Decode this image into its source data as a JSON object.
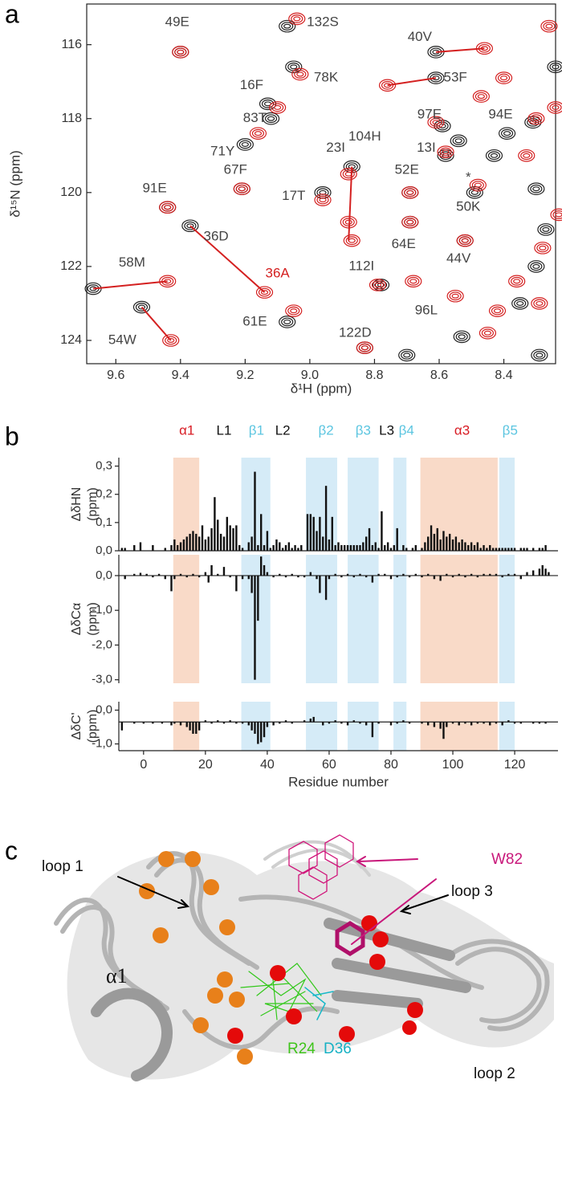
{
  "panel_labels": [
    "a",
    "b",
    "c"
  ],
  "chart_data": [
    {
      "type": "scatter",
      "xlabel": "δ¹H (ppm)",
      "ylabel": "δ¹⁵N (ppm)",
      "xlim": [
        9.69,
        8.24
      ],
      "ylim": [
        114.9,
        124.63
      ],
      "xticks": [
        9.6,
        9.4,
        9.2,
        {
          "value": 9,
          "label": "9.0"
        },
        8.8,
        8.6,
        8.4
      ],
      "yticks": [
        116,
        118,
        120,
        122,
        124
      ],
      "series": [
        {
          "color": "#222222",
          "x": [
            9.4,
            9.07,
            9.05,
            9.13,
            9.12,
            9.2,
            9.21,
            9.44,
            9.37,
            9.67,
            9.52,
            9.07,
            8.96,
            8.87,
            8.78,
            8.7,
            8.61,
            8.61,
            8.59,
            8.31,
            8.58,
            8.69,
            8.69,
            8.52,
            8.49,
            8.53,
            8.43,
            8.39,
            8.24,
            8.3,
            8.27,
            8.3,
            8.35,
            8.29,
            8.54,
            8.83
          ],
          "values": [
            116.2,
            115.5,
            116.6,
            117.6,
            118.0,
            118.7,
            119.9,
            120.4,
            120.9,
            122.6,
            123.1,
            123.5,
            120.0,
            119.3,
            122.5,
            124.4,
            116.2,
            116.9,
            118.2,
            118.1,
            119.0,
            120.0,
            120.8,
            121.3,
            120.0,
            123.9,
            119.0,
            118.4,
            116.6,
            119.9,
            121.0,
            122.0,
            123.0,
            124.4,
            118.6,
            124.2
          ]
        },
        {
          "color": "#d42020",
          "x": [
            9.4,
            9.04,
            9.03,
            9.1,
            9.16,
            9.21,
            9.44,
            9.14,
            9.44,
            9.43,
            9.05,
            8.96,
            8.88,
            8.87,
            8.88,
            8.79,
            8.83,
            8.46,
            8.76,
            8.47,
            8.61,
            8.3,
            8.58,
            8.69,
            8.69,
            8.52,
            8.48,
            8.45,
            8.26,
            8.4,
            8.33,
            8.23,
            8.28,
            8.36,
            8.29,
            8.42,
            8.24,
            8.68,
            8.55
          ],
          "values": [
            116.2,
            115.3,
            116.8,
            117.7,
            118.4,
            119.9,
            120.4,
            122.7,
            122.4,
            124.0,
            123.2,
            120.2,
            120.8,
            121.3,
            119.5,
            122.5,
            124.2,
            116.1,
            117.1,
            117.4,
            118.1,
            118.0,
            118.9,
            120.0,
            120.8,
            121.3,
            119.8,
            123.8,
            115.5,
            116.9,
            119.0,
            120.6,
            121.5,
            122.4,
            123.0,
            123.2,
            117.7,
            122.4,
            122.8
          ]
        }
      ],
      "shift_color": "#d42020",
      "shift_lines": [
        {
          "x": [
            9.67,
            9.44
          ],
          "y": [
            122.6,
            122.4
          ]
        },
        {
          "x": [
            9.52,
            9.43
          ],
          "y": [
            123.1,
            124.0
          ]
        },
        {
          "x": [
            9.37,
            9.14
          ],
          "y": [
            120.9,
            122.7
          ]
        },
        {
          "x": [
            8.87,
            8.88
          ],
          "y": [
            119.3,
            121.3
          ]
        },
        {
          "x": [
            8.61,
            8.46
          ],
          "y": [
            116.2,
            116.1
          ]
        },
        {
          "x": [
            8.61,
            8.76
          ],
          "y": [
            116.9,
            117.1
          ]
        }
      ],
      "annotations": [
        {
          "text": "49E",
          "h": 9.41,
          "n": 115.4
        },
        {
          "text": "132S",
          "h": 8.96,
          "n": 115.4
        },
        {
          "text": "78K",
          "h": 8.95,
          "n": 116.9
        },
        {
          "text": "16F",
          "h": 9.18,
          "n": 117.1
        },
        {
          "text": "83T",
          "h": 9.17,
          "n": 118.0
        },
        {
          "text": "71Y",
          "h": 9.27,
          "n": 118.9
        },
        {
          "text": "67F",
          "h": 9.23,
          "n": 119.4
        },
        {
          "text": "91E",
          "h": 9.48,
          "n": 119.9
        },
        {
          "text": "36D",
          "h": 9.29,
          "n": 121.2
        },
        {
          "text": "36A",
          "h": 9.1,
          "n": 122.2,
          "color": "#d42020"
        },
        {
          "text": "58M",
          "h": 9.55,
          "n": 121.9
        },
        {
          "text": "54W",
          "h": 9.58,
          "n": 124.0
        },
        {
          "text": "61E",
          "h": 9.17,
          "n": 123.5
        },
        {
          "text": "17T",
          "h": 9.05,
          "n": 120.1
        },
        {
          "text": "23I",
          "h": 8.92,
          "n": 118.8
        },
        {
          "text": "104H",
          "h": 8.83,
          "n": 118.5
        },
        {
          "text": "52E",
          "h": 8.7,
          "n": 119.4
        },
        {
          "text": "13I",
          "h": 8.64,
          "n": 118.8
        },
        {
          "text": "97E",
          "h": 8.63,
          "n": 117.9
        },
        {
          "text": "94E",
          "h": 8.41,
          "n": 117.9
        },
        {
          "text": "40V",
          "h": 8.66,
          "n": 115.8
        },
        {
          "text": "53F",
          "h": 8.55,
          "n": 116.9
        },
        {
          "text": "50K",
          "h": 8.51,
          "n": 120.4
        },
        {
          "text": "*",
          "h": 8.51,
          "n": 119.6
        },
        {
          "text": "64E",
          "h": 8.71,
          "n": 121.4
        },
        {
          "text": "44V",
          "h": 8.54,
          "n": 121.8
        },
        {
          "text": "112I",
          "h": 8.84,
          "n": 122.0
        },
        {
          "text": "122D",
          "h": 8.86,
          "n": 123.8
        },
        {
          "text": "96L",
          "h": 8.64,
          "n": 123.2
        }
      ]
    },
    {
      "type": "bar",
      "ylabel": [
        "ΔδHN",
        "(ppm)"
      ],
      "color": "#111111",
      "xlim": [
        -8,
        134
      ],
      "ylim": [
        0,
        0.33
      ],
      "yticks": [
        {
          "value": 0,
          "label": "0,0"
        },
        {
          "value": 0.1,
          "label": "0,1"
        },
        {
          "value": 0.2,
          "label": "0,2"
        },
        {
          "value": 0.3,
          "label": "0,3"
        }
      ],
      "x": [
        -7,
        -6,
        -3,
        -1,
        3,
        7,
        9,
        10,
        11,
        12,
        13,
        14,
        15,
        16,
        17,
        18,
        19,
        20,
        21,
        22,
        23,
        24,
        25,
        26,
        27,
        28,
        29,
        30,
        31,
        32,
        34,
        35,
        36,
        37,
        38,
        39,
        40,
        41,
        42,
        43,
        44,
        45,
        46,
        47,
        48,
        49,
        50,
        51,
        53,
        54,
        55,
        56,
        57,
        58,
        59,
        60,
        61,
        62,
        63,
        64,
        65,
        66,
        67,
        68,
        69,
        70,
        71,
        72,
        73,
        74,
        75,
        76,
        77,
        78,
        79,
        80,
        81,
        82,
        84,
        85,
        87,
        88,
        90,
        91,
        92,
        93,
        94,
        95,
        96,
        97,
        98,
        99,
        100,
        101,
        102,
        103,
        104,
        105,
        106,
        107,
        108,
        109,
        110,
        111,
        112,
        113,
        114,
        115,
        116,
        117,
        118,
        119,
        120,
        122,
        123,
        124,
        126,
        128,
        129,
        130
      ],
      "values": [
        0.01,
        0.01,
        0.02,
        0.03,
        0.02,
        0.01,
        0.02,
        0.04,
        0.02,
        0.03,
        0.04,
        0.05,
        0.06,
        0.07,
        0.06,
        0.05,
        0.09,
        0.04,
        0.05,
        0.08,
        0.19,
        0.11,
        0.06,
        0.05,
        0.12,
        0.09,
        0.08,
        0.09,
        0.02,
        0.01,
        0.03,
        0.05,
        0.28,
        0.02,
        0.13,
        0.02,
        0.07,
        0.01,
        0.02,
        0.04,
        0.03,
        0.01,
        0.02,
        0.03,
        0.01,
        0.02,
        0.01,
        0.02,
        0.13,
        0.13,
        0.12,
        0.07,
        0.12,
        0.05,
        0.23,
        0.04,
        0.12,
        0.02,
        0.03,
        0.02,
        0.02,
        0.02,
        0.02,
        0.02,
        0.02,
        0.02,
        0.03,
        0.05,
        0.08,
        0.02,
        0.03,
        0.01,
        0.14,
        0.02,
        0.03,
        0.01,
        0.02,
        0.08,
        0.02,
        0.01,
        0.01,
        0.02,
        0.01,
        0.03,
        0.05,
        0.09,
        0.06,
        0.08,
        0.04,
        0.07,
        0.05,
        0.06,
        0.04,
        0.05,
        0.03,
        0.04,
        0.03,
        0.02,
        0.03,
        0.02,
        0.03,
        0.01,
        0.02,
        0.01,
        0.02,
        0.01,
        0.01,
        0.01,
        0.01,
        0.01,
        0.01,
        0.01,
        0.01,
        0.01,
        0.01,
        0.01,
        0.01,
        0.01,
        0.01,
        0.02
      ]
    },
    {
      "type": "bar",
      "ylabel": [
        "ΔδCα",
        "(ppm)"
      ],
      "color": "#111111",
      "xlim": [
        -8,
        134
      ],
      "ylim": [
        -3.1,
        0.6
      ],
      "yticks": [
        {
          "value": 0,
          "label": "0,0"
        },
        {
          "value": -1,
          "label": "-1,0"
        },
        {
          "value": -2,
          "label": "-2,0"
        },
        {
          "value": -3,
          "label": "-3,0"
        }
      ],
      "x": [
        -6,
        -3,
        -1,
        1,
        3,
        5,
        7,
        9,
        10,
        12,
        14,
        16,
        18,
        20,
        21,
        22,
        24,
        26,
        28,
        30,
        32,
        34,
        35,
        36,
        37,
        38,
        39,
        40,
        42,
        44,
        46,
        48,
        50,
        52,
        54,
        56,
        57,
        59,
        60,
        62,
        64,
        66,
        68,
        70,
        72,
        74,
        76,
        78,
        80,
        82,
        84,
        86,
        88,
        90,
        92,
        94,
        96,
        98,
        100,
        102,
        104,
        106,
        108,
        110,
        112,
        114,
        116,
        118,
        120,
        122,
        124,
        126,
        128,
        129,
        130,
        131
      ],
      "values": [
        -0.1,
        0.05,
        0.08,
        0.05,
        -0.05,
        0.05,
        -0.1,
        -0.45,
        -0.1,
        0.05,
        -0.05,
        0.05,
        -0.05,
        0.1,
        -0.2,
        0.3,
        0.05,
        0.25,
        -0.05,
        -0.45,
        -0.1,
        -0.1,
        -0.5,
        -3.0,
        -1.3,
        0.55,
        0.3,
        0.1,
        -0.05,
        0.05,
        -0.05,
        0.05,
        -0.05,
        -0.05,
        0.1,
        -0.1,
        -0.5,
        -0.7,
        -0.1,
        0.05,
        -0.05,
        0.05,
        -0.05,
        0.05,
        -0.05,
        -0.2,
        0.05,
        0.05,
        -0.1,
        -0.05,
        0.05,
        -0.05,
        0.05,
        -0.05,
        0.05,
        -0.1,
        -0.15,
        0.05,
        -0.05,
        0.05,
        -0.05,
        0.05,
        -0.05,
        0.05,
        0.05,
        0.05,
        -0.05,
        0.05,
        0.05,
        -0.1,
        0.1,
        0.15,
        0.2,
        0.3,
        0.2,
        0.1
      ]
    },
    {
      "type": "bar",
      "ylabel": [
        "ΔδC'",
        "(ppm)"
      ],
      "color": "#111111",
      "bar_base": -0.35,
      "xlabel": "Residue number",
      "xlim": [
        -8,
        134
      ],
      "ylim": [
        -1.2,
        0.25
      ],
      "xticks": [
        0,
        20,
        40,
        60,
        80,
        100,
        120
      ],
      "yticks": [
        {
          "value": 0,
          "label": "0,0"
        },
        {
          "value": -1,
          "label": "-1,0"
        }
      ],
      "x": [
        -7,
        -3,
        0,
        3,
        6,
        9,
        10,
        12,
        14,
        15,
        16,
        17,
        18,
        20,
        22,
        24,
        26,
        28,
        30,
        32,
        34,
        35,
        36,
        37,
        38,
        39,
        40,
        42,
        44,
        46,
        48,
        50,
        52,
        54,
        55,
        56,
        58,
        60,
        62,
        64,
        66,
        68,
        70,
        72,
        74,
        76,
        78,
        80,
        82,
        84,
        86,
        88,
        90,
        92,
        94,
        96,
        97,
        98,
        100,
        102,
        104,
        106,
        108,
        110,
        112,
        114,
        116,
        118,
        120,
        122,
        124,
        126,
        128,
        130
      ],
      "values": [
        -0.6,
        -0.4,
        -0.4,
        -0.4,
        -0.4,
        -0.45,
        -0.4,
        -0.45,
        -0.5,
        -0.6,
        -0.7,
        -0.7,
        -0.6,
        -0.3,
        -0.4,
        -0.3,
        -0.4,
        -0.3,
        -0.4,
        -0.4,
        -0.45,
        -0.6,
        -0.7,
        -1.0,
        -0.95,
        -0.8,
        -0.5,
        -0.45,
        -0.4,
        -0.3,
        -0.4,
        -0.35,
        -0.3,
        -0.25,
        -0.2,
        -0.35,
        -0.45,
        -0.4,
        -0.3,
        -0.4,
        -0.45,
        -0.3,
        -0.4,
        -0.45,
        -0.8,
        -0.4,
        -0.35,
        -0.45,
        -0.4,
        -0.3,
        -0.4,
        -0.35,
        -0.4,
        -0.45,
        -0.5,
        -0.55,
        -0.85,
        -0.5,
        -0.4,
        -0.45,
        -0.4,
        -0.45,
        -0.4,
        -0.4,
        -0.45,
        -0.4,
        -0.45,
        -0.3,
        -0.4,
        -0.4,
        -0.35,
        -0.4,
        -0.4,
        -0.4
      ]
    }
  ],
  "secondary_structure": [
    {
      "label": "α1",
      "x": 14,
      "start": 9.6,
      "end": 18,
      "color": "#d81b23",
      "shade": "#f9dac8"
    },
    {
      "label": "L1",
      "x": 26,
      "color": "#111111"
    },
    {
      "label": "β1",
      "x": 36.5,
      "start": 31.6,
      "end": 41,
      "color": "#5bc5e0",
      "shade": "#d5ebf7"
    },
    {
      "label": "L2",
      "x": 45,
      "color": "#111111"
    },
    {
      "label": "β2",
      "x": 59,
      "start": 52.5,
      "end": 62.6,
      "color": "#5bc5e0",
      "shade": "#d5ebf7"
    },
    {
      "label": "β3",
      "x": 71,
      "start": 66,
      "end": 76,
      "color": "#5bc5e0",
      "shade": "#d5ebf7"
    },
    {
      "label": "L3",
      "x": 78.6,
      "color": "#111111"
    },
    {
      "label": "β4",
      "x": 85,
      "start": 80.8,
      "end": 85,
      "color": "#5bc5e0",
      "shade": "#d5ebf7"
    },
    {
      "label": "α3",
      "x": 103,
      "start": 89.5,
      "end": 114.5,
      "color": "#d81b23",
      "shade": "#f9dac8"
    },
    {
      "label": "β5",
      "x": 118.5,
      "start": 115,
      "end": 120,
      "color": "#5bc5e0",
      "shade": "#d5ebf7"
    }
  ],
  "structure": {
    "labels": [
      "loop 1",
      "W82",
      "loop 3",
      "α1",
      "R24",
      "D36",
      "loop 2"
    ]
  }
}
